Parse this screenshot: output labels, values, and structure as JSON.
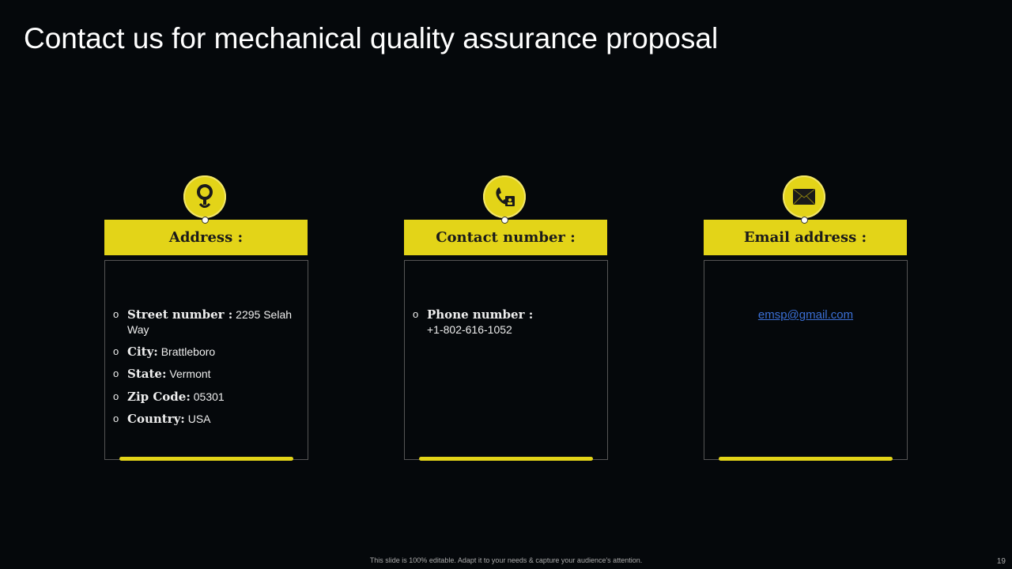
{
  "title": "Contact us for mechanical quality assurance proposal",
  "accent": "#e3d418",
  "cards": [
    {
      "heading": "Address :",
      "icon": "location-pin-icon",
      "items": [
        {
          "label": "Street number :",
          "value": "2295 Selah Way"
        },
        {
          "label": "City:",
          "value": "Brattleboro"
        },
        {
          "label": "State:",
          "value": "Vermont"
        },
        {
          "label": "Zip Code:",
          "value": "05301"
        },
        {
          "label": "Country:",
          "value": "USA"
        }
      ]
    },
    {
      "heading": "Contact number :",
      "icon": "phone-contact-icon",
      "items": [
        {
          "label": "Phone number :",
          "value": "+1-802-616-1052"
        }
      ]
    },
    {
      "heading": "Email address :",
      "icon": "envelope-icon",
      "email": "emsp@gmail.com"
    }
  ],
  "footer": "This slide is 100% editable. Adapt it to your needs & capture your audience's attention.",
  "page_number": "19"
}
